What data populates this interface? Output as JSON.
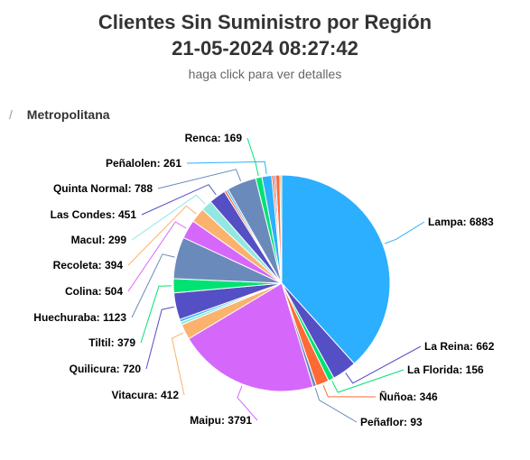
{
  "header": {
    "title": "Clientes Sin Suministro por Región",
    "timestamp": "21-05-2024 08:27:42",
    "subtitle": "haga click para ver detalles"
  },
  "breadcrumb": {
    "separator": "/",
    "current": "Metropolitana"
  },
  "chart_data": {
    "type": "pie",
    "data_labels": true,
    "series": [
      {
        "points": [
          {
            "name": "Lampa",
            "value": 6883,
            "color": "#2caffe"
          },
          {
            "name": "La Reina",
            "value": 662,
            "color": "#544fc5"
          },
          {
            "name": "La Florida",
            "value": 156,
            "color": "#00e272"
          },
          {
            "name": "Ñuñoa",
            "value": 346,
            "color": "#fe6a35"
          },
          {
            "name": "Peñaflor",
            "value": 93,
            "color": "#6b8abc"
          },
          {
            "name": "Maipu",
            "value": 3791,
            "color": "#d568fb"
          },
          {
            "name": "Vitacura",
            "value": 412,
            "color": "#fbb26d"
          },
          {
            "name": "",
            "value": 80,
            "color": "#91e8e1"
          },
          {
            "name": "",
            "value": 70,
            "color": "#2caffe"
          },
          {
            "name": "Quilicura",
            "value": 720,
            "color": "#544fc5"
          },
          {
            "name": "Tiltil",
            "value": 379,
            "color": "#00e272"
          },
          {
            "name": "Huechuraba",
            "value": 1123,
            "color": "#6b8abc"
          },
          {
            "name": "Colina",
            "value": 504,
            "color": "#d568fb"
          },
          {
            "name": "Recoleta",
            "value": 394,
            "color": "#fbb26d"
          },
          {
            "name": "Macul",
            "value": 299,
            "color": "#91e8e1"
          },
          {
            "name": "Las Condes",
            "value": 451,
            "color": "#544fc5"
          },
          {
            "name": "",
            "value": 60,
            "color": "#fe6a35"
          },
          {
            "name": "",
            "value": 55,
            "color": "#2caffe"
          },
          {
            "name": "Quinta Normal",
            "value": 788,
            "color": "#6b8abc"
          },
          {
            "name": "Renca",
            "value": 169,
            "color": "#00e272"
          },
          {
            "name": "Peñalolen",
            "value": 261,
            "color": "#2caffe"
          },
          {
            "name": "",
            "value": 60,
            "color": "#fe6a35"
          },
          {
            "name": "",
            "value": 45,
            "color": "#544fc5"
          },
          {
            "name": "",
            "value": 110,
            "color": "#fe6a35"
          },
          {
            "name": "",
            "value": 50,
            "color": "#fbb26d"
          }
        ]
      }
    ]
  }
}
